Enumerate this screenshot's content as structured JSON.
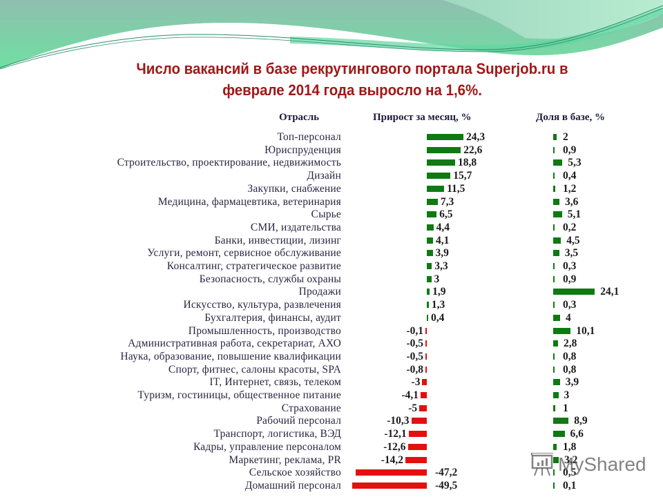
{
  "slide": {
    "title_line1": "Число вакансий в базе рекрутингового портала Superjob.ru в",
    "title_line2": "феврале 2014 года выросло на 1,6%.",
    "title_color": "#a01818"
  },
  "table": {
    "headers": {
      "industry": "Отрасль",
      "growth": "Прирост  за месяц, %",
      "share": "Доля в  базе, %"
    },
    "colors": {
      "positive": "#0f7a12",
      "negative": "#e31010"
    },
    "rows": [
      {
        "industry": "Топ-персонал",
        "growth": "24,3",
        "share": "2"
      },
      {
        "industry": "Юриспруденция",
        "growth": "22,6",
        "share": "0,9"
      },
      {
        "industry": "Строительство, проектирование, недвижимость",
        "growth": "18,8",
        "share": "5,3"
      },
      {
        "industry": "Дизайн",
        "growth": "15,7",
        "share": "0,4"
      },
      {
        "industry": "Закупки, снабжение",
        "growth": "11,5",
        "share": "1,2"
      },
      {
        "industry": "Медицина, фармацевтика, ветеринария",
        "growth": "7,3",
        "share": "3,6"
      },
      {
        "industry": "Сырье",
        "growth": "6,5",
        "share": "5,1"
      },
      {
        "industry": "СМИ, издательства",
        "growth": "4,4",
        "share": "0,2"
      },
      {
        "industry": "Банки, инвестиции,  лизинг",
        "growth": "4,1",
        "share": "4,5"
      },
      {
        "industry": "Услуги, ремонт, сервисное обслуживание",
        "growth": "3,9",
        "share": "3,5"
      },
      {
        "industry": "Консалтинг, стратегическое развитие",
        "growth": "3,3",
        "share": "0,3"
      },
      {
        "industry": "Безопасность, службы охраны",
        "growth": "3",
        "share": "0,9"
      },
      {
        "industry": "Продажи",
        "growth": "1,9",
        "share": "24,1"
      },
      {
        "industry": "Искусство, культура, развлечения",
        "growth": "1,3",
        "share": "0,3"
      },
      {
        "industry": "Бухгалтерия, финансы, аудит",
        "growth": "0,4",
        "share": "4"
      },
      {
        "industry": "Промышленность, производство",
        "growth": "-0,1",
        "share": "10,1"
      },
      {
        "industry": "Административная  работа, секретариат, АХО",
        "growth": "-0,5",
        "share": "2,8"
      },
      {
        "industry": "Наука, образование, повышение  квалификации",
        "growth": "-0,5",
        "share": "0,8"
      },
      {
        "industry": "Спорт, фитнес, салоны красоты, SPA",
        "growth": "-0,8",
        "share": "0,8"
      },
      {
        "industry": "IT, Интернет, связь, телеком",
        "growth": "-3",
        "share": "3,9"
      },
      {
        "industry": "Туризм, гостиницы, общественное  питание",
        "growth": "-4,1",
        "share": "3"
      },
      {
        "industry": "Страхование",
        "growth": "-5",
        "share": "1"
      },
      {
        "industry": "Рабочий персонал",
        "growth": "-10,3",
        "share": "8,9"
      },
      {
        "industry": "Транспорт, логистика, ВЭД",
        "growth": "-12,1",
        "share": "6,6"
      },
      {
        "industry": "Кадры, управление персоналом",
        "growth": "-12,6",
        "share": "1,8"
      },
      {
        "industry": "Маркетинг, реклама, PR",
        "growth": "-14,2",
        "share": "3,2"
      },
      {
        "industry": "Сельское хозяйство",
        "growth": "-47,2",
        "share": "0,5"
      },
      {
        "industry": "Домашний  персонал",
        "growth": "-49,5",
        "share": "0,1"
      }
    ]
  },
  "watermark": {
    "text": "MyShared",
    "icon": "presentation-board-icon"
  },
  "chart_data": [
    {
      "type": "bar",
      "orientation": "horizontal",
      "title": "Прирост  за месяц, %",
      "xlabel": "Прирост за месяц, %",
      "ylabel": "Отрасль",
      "categories": [
        "Топ-персонал",
        "Юриспруденция",
        "Строительство, проектирование, недвижимость",
        "Дизайн",
        "Закупки, снабжение",
        "Медицина, фармацевтика, ветеринария",
        "Сырье",
        "СМИ, издательства",
        "Банки, инвестиции, лизинг",
        "Услуги, ремонт, сервисное обслуживание",
        "Консалтинг, стратегическое развитие",
        "Безопасность, службы охраны",
        "Продажи",
        "Искусство, культура, развлечения",
        "Бухгалтерия, финансы, аудит",
        "Промышленность, производство",
        "Административная работа, секретариат, АХО",
        "Наука, образование, повышение квалификации",
        "Спорт, фитнес, салоны красоты, SPA",
        "IT, Интернет, связь, телеком",
        "Туризм, гостиницы, общественное питание",
        "Страхование",
        "Рабочий персонал",
        "Транспорт, логистика, ВЭД",
        "Кадры, управление персоналом",
        "Маркетинг, реклама, PR",
        "Сельское хозяйство",
        "Домашний персонал"
      ],
      "values": [
        24.3,
        22.6,
        18.8,
        15.7,
        11.5,
        7.3,
        6.5,
        4.4,
        4.1,
        3.9,
        3.3,
        3,
        1.9,
        1.3,
        0.4,
        -0.1,
        -0.5,
        -0.5,
        -0.8,
        -3,
        -4.1,
        -5,
        -10.3,
        -12.1,
        -12.6,
        -14.2,
        -47.2,
        -49.5
      ],
      "colors": {
        "positive": "#0f7a12",
        "negative": "#e31010"
      },
      "grid": false,
      "xlim": [
        -50,
        25
      ]
    },
    {
      "type": "bar",
      "orientation": "horizontal",
      "title": "Доля в  базе, %",
      "xlabel": "Доля в базе, %",
      "ylabel": "Отрасль",
      "categories": [
        "Топ-персонал",
        "Юриспруденция",
        "Строительство, проектирование, недвижимость",
        "Дизайн",
        "Закупки, снабжение",
        "Медицина, фармацевтика, ветеринария",
        "Сырье",
        "СМИ, издательства",
        "Банки, инвестиции, лизинг",
        "Услуги, ремонт, сервисное обслуживание",
        "Консалтинг, стратегическое развитие",
        "Безопасность, службы охраны",
        "Продажи",
        "Искусство, культура, развлечения",
        "Бухгалтерия, финансы, аудит",
        "Промышленность, производство",
        "Административная работа, секретариат, АХО",
        "Наука, образование, повышение квалификации",
        "Спорт, фитнес, салоны красоты, SPA",
        "IT, Интернет, связь, телеком",
        "Туризм, гостиницы, общественное питание",
        "Страхование",
        "Рабочий персонал",
        "Транспорт, логистика, ВЭД",
        "Кадры, управление персоналом",
        "Маркетинг, реклама, PR",
        "Сельское хозяйство",
        "Домашний персонал"
      ],
      "values": [
        2,
        0.9,
        5.3,
        0.4,
        1.2,
        3.6,
        5.1,
        0.2,
        4.5,
        3.5,
        0.3,
        0.9,
        24.1,
        0.3,
        4,
        10.1,
        2.8,
        0.8,
        0.8,
        3.9,
        3,
        1,
        8.9,
        6.6,
        1.8,
        3.2,
        0.5,
        0.1
      ],
      "colors": {
        "positive": "#0f7a12"
      },
      "grid": false,
      "xlim": [
        0,
        25
      ]
    }
  ]
}
